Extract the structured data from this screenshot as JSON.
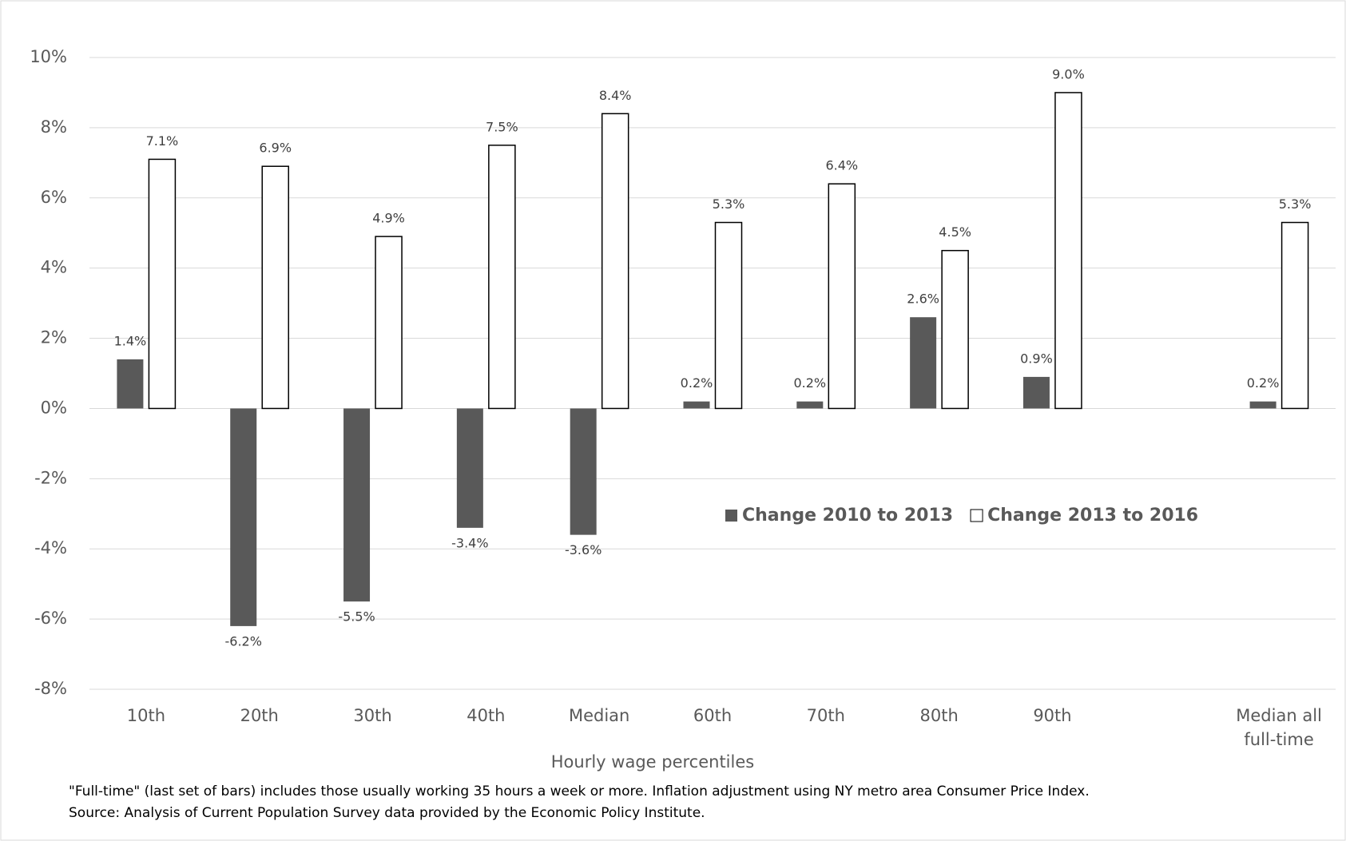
{
  "chart_data": {
    "type": "bar",
    "x_label": "Hourly wage percentiles",
    "categories": [
      "10th",
      "20th",
      "30th",
      "40th",
      "Median",
      "60th",
      "70th",
      "80th",
      "90th",
      null,
      "Median all full-time"
    ],
    "series": [
      {
        "name": "Change 2010 to 2013",
        "color": "#595959",
        "values": [
          1.4,
          -6.2,
          -5.5,
          -3.4,
          -3.6,
          0.2,
          0.2,
          2.6,
          0.9,
          null,
          0.2
        ],
        "value_labels": [
          "1.4%",
          "-6.2%",
          "-5.5%",
          "-3.4%",
          "-3.6%",
          "0.2%",
          "0.2%",
          "2.6%",
          "0.9%",
          null,
          "0.2%"
        ]
      },
      {
        "name": "Change 2013 to 2016",
        "color": "#ffffff",
        "values": [
          7.1,
          6.9,
          4.9,
          7.5,
          8.4,
          5.3,
          6.4,
          4.5,
          9.0,
          null,
          5.3
        ],
        "value_labels": [
          "7.1%",
          "6.9%",
          "4.9%",
          "7.5%",
          "8.4%",
          "5.3%",
          "6.4%",
          "4.5%",
          "9.0%",
          null,
          "5.3%"
        ]
      }
    ],
    "ylim": [
      -8,
      10
    ],
    "yticks": [
      {
        "value": -8,
        "label": "-8%"
      },
      {
        "value": -6,
        "label": "-6%"
      },
      {
        "value": -4,
        "label": "-4%"
      },
      {
        "value": -2,
        "label": "-2%"
      },
      {
        "value": 0,
        "label": "0%"
      },
      {
        "value": 2,
        "label": "2%"
      },
      {
        "value": 4,
        "label": "4%"
      },
      {
        "value": 6,
        "label": "6%"
      },
      {
        "value": 8,
        "label": "8%"
      },
      {
        "value": 10,
        "label": "10%"
      }
    ],
    "grid": true,
    "legend": "center",
    "footnotes": [
      "\"Full-time\" (last set of bars) includes those usually working 35 hours a week or more.  Inflation adjustment using NY metro  area Consumer Price Index.",
      "Source:  Analysis of Current Population Survey data provided by the Economic Policy Institute."
    ]
  }
}
